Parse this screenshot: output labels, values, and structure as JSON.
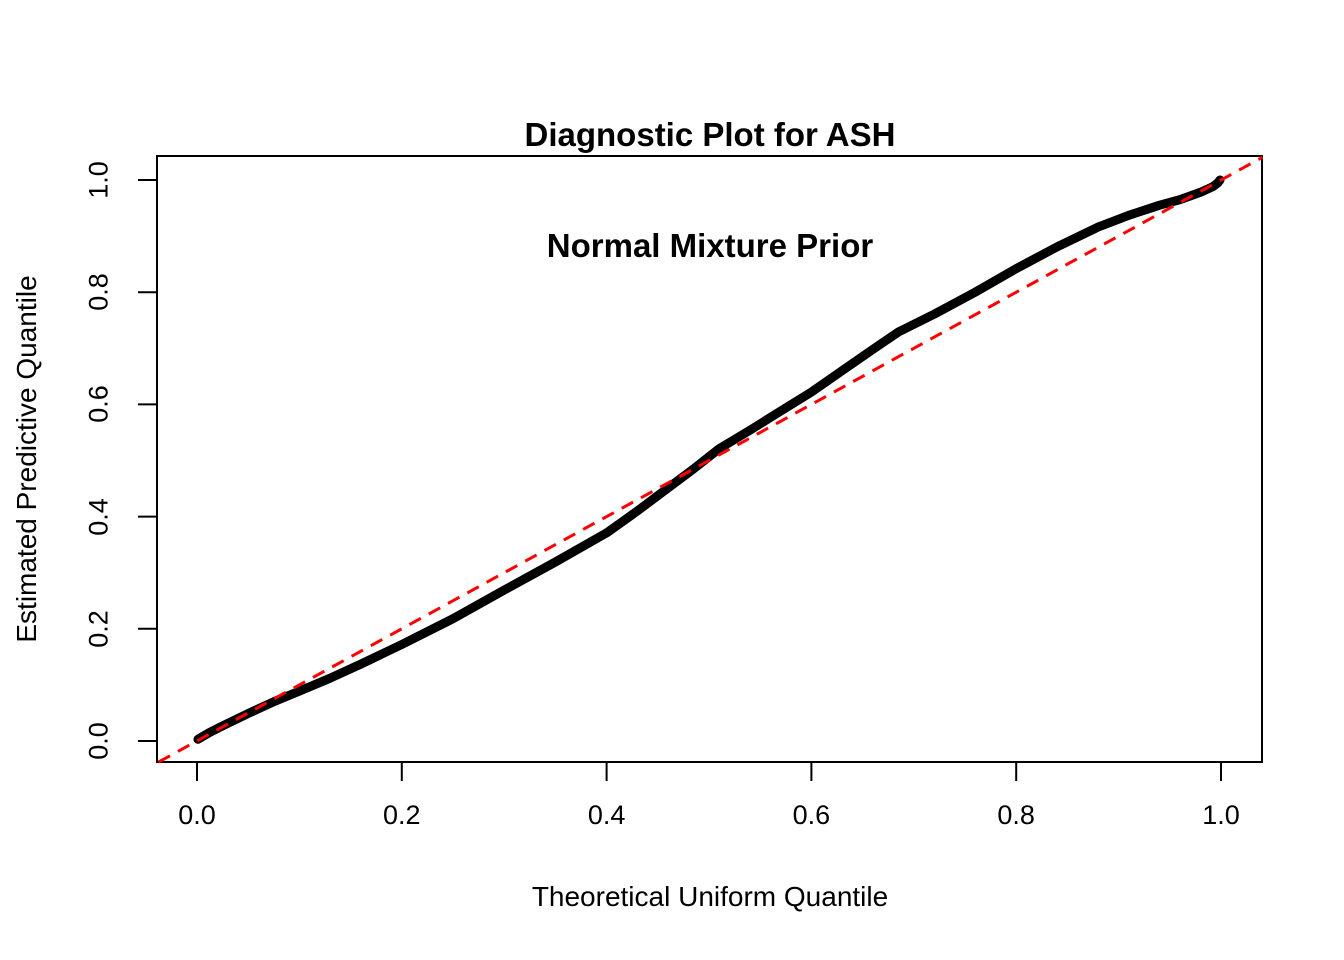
{
  "figure": {
    "title_line1": "Diagnostic Plot for ASH",
    "title_line2": "Normal Mixture Prior",
    "x_axis_label": "Theoretical Uniform Quantile",
    "y_axis_label": "Estimated Predictive Quantile"
  },
  "chart_data": {
    "type": "line",
    "title": "Diagnostic Plot for ASH\nNormal Mixture Prior",
    "xlabel": "Theoretical Uniform Quantile",
    "ylabel": "Estimated Predictive Quantile",
    "xlim": [
      -0.04,
      1.04
    ],
    "ylim": [
      -0.04,
      1.04
    ],
    "grid": false,
    "legend": "none",
    "x_ticks": [
      0.0,
      0.2,
      0.4,
      0.6,
      0.8,
      1.0
    ],
    "y_ticks": [
      0.0,
      0.2,
      0.4,
      0.6,
      0.8,
      1.0
    ],
    "x_tick_labels": [
      "0.0",
      "0.2",
      "0.4",
      "0.6",
      "0.8",
      "1.0"
    ],
    "y_tick_labels": [
      "0.0",
      "0.2",
      "0.4",
      "0.6",
      "0.8",
      "1.0"
    ],
    "series": [
      {
        "name": "estimated-predictive-quantile-curve",
        "style": "thick-point-curve",
        "color": "#000000",
        "x": [
          0.001,
          0.012,
          0.025,
          0.05,
          0.075,
          0.1,
          0.13,
          0.16,
          0.2,
          0.25,
          0.3,
          0.35,
          0.4,
          0.43,
          0.46,
          0.485,
          0.51,
          0.54,
          0.57,
          0.6,
          0.63,
          0.66,
          0.685,
          0.72,
          0.76,
          0.8,
          0.84,
          0.88,
          0.91,
          0.94,
          0.96,
          0.98,
          0.992,
          0.997,
          0.999
        ],
        "y": [
          0.003,
          0.015,
          0.027,
          0.049,
          0.07,
          0.089,
          0.112,
          0.137,
          0.172,
          0.218,
          0.269,
          0.319,
          0.371,
          0.41,
          0.451,
          0.485,
          0.521,
          0.554,
          0.588,
          0.622,
          0.66,
          0.698,
          0.729,
          0.761,
          0.8,
          0.842,
          0.881,
          0.916,
          0.937,
          0.955,
          0.965,
          0.978,
          0.988,
          0.995,
          1.0
        ]
      }
    ],
    "reference_line": {
      "name": "identity-line-y-equals-x",
      "color": "#FF0000",
      "style": "dashed",
      "x": [
        -0.0375,
        1.0405
      ],
      "y": [
        -0.0375,
        1.0405
      ]
    },
    "colors": {
      "curve": "#000000",
      "reference": "#FF0000",
      "axis": "#000000",
      "background": "#FFFFFF"
    }
  }
}
